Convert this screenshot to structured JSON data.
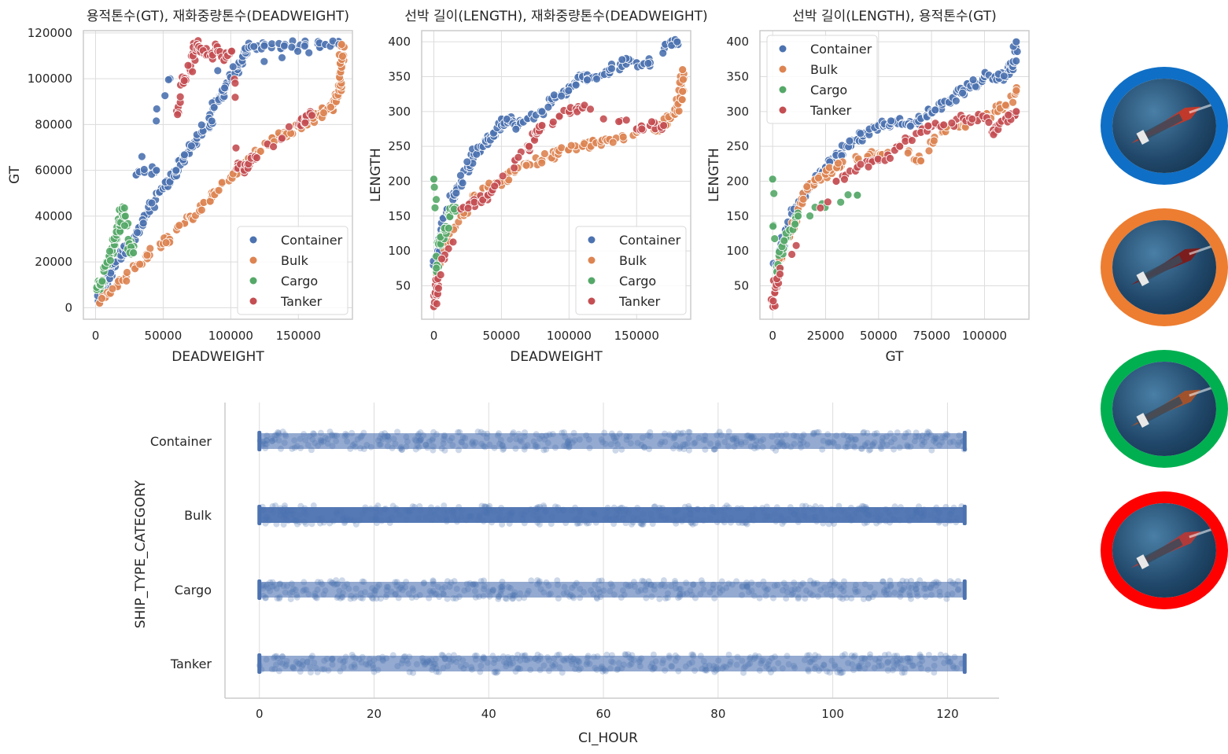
{
  "chart_data": [
    {
      "type": "scatter",
      "title": "용적톤수(GT), 재화중량톤수(DEADWEIGHT)",
      "xlabel": "DEADWEIGHT",
      "ylabel": "GT",
      "xlim": [
        -9000,
        190000
      ],
      "ylim": [
        -5000,
        121000
      ],
      "xticks": [
        0,
        50000,
        100000,
        150000
      ],
      "yticks": [
        0,
        20000,
        40000,
        60000,
        80000,
        100000,
        120000
      ],
      "grid": true,
      "legend": "lower-right",
      "series": [
        {
          "name": "Container",
          "color": "#4c72b0",
          "points": [
            [
              2000,
              3000
            ],
            [
              5000,
              8000
            ],
            [
              8000,
              12000
            ],
            [
              12000,
              16000
            ],
            [
              15000,
              20000
            ],
            [
              20000,
              25000
            ],
            [
              25000,
              28000
            ],
            [
              30000,
              32000
            ],
            [
              35000,
              36000
            ],
            [
              40000,
              42000
            ],
            [
              45000,
              50000
            ],
            [
              50000,
              52000
            ],
            [
              55000,
              55000
            ],
            [
              60000,
              60000
            ],
            [
              65000,
              65000
            ],
            [
              70000,
              70000
            ],
            [
              75000,
              74000
            ],
            [
              80000,
              78000
            ],
            [
              85000,
              80000
            ],
            [
              88000,
              88000
            ],
            [
              92000,
              92000
            ],
            [
              95000,
              96000
            ],
            [
              100000,
              100000
            ],
            [
              105000,
              104000
            ],
            [
              108000,
              108000
            ],
            [
              110000,
              112000
            ],
            [
              115000,
              114000
            ],
            [
              125000,
              115000
            ],
            [
              140000,
              115000
            ],
            [
              155000,
              115000
            ],
            [
              170000,
              115000
            ],
            [
              180000,
              115000
            ],
            [
              55000,
              100000
            ],
            [
              30000,
              58000
            ],
            [
              45000,
              60000
            ]
          ]
        },
        {
          "name": "Bulk",
          "color": "#dd8452",
          "points": [
            [
              3000,
              2000
            ],
            [
              10000,
              6000
            ],
            [
              20000,
              12000
            ],
            [
              30000,
              18000
            ],
            [
              40000,
              23000
            ],
            [
              50000,
              28000
            ],
            [
              60000,
              34000
            ],
            [
              70000,
              40000
            ],
            [
              80000,
              46000
            ],
            [
              90000,
              51000
            ],
            [
              100000,
              57000
            ],
            [
              110000,
              62000
            ],
            [
              120000,
              68000
            ],
            [
              130000,
              73000
            ],
            [
              140000,
              76000
            ],
            [
              150000,
              79000
            ],
            [
              160000,
              82000
            ],
            [
              165000,
              84000
            ],
            [
              170000,
              86000
            ],
            [
              175000,
              88000
            ],
            [
              178000,
              90000
            ],
            [
              180000,
              95000
            ],
            [
              181000,
              100000
            ],
            [
              182000,
              105000
            ],
            [
              182000,
              110000
            ],
            [
              182000,
              115000
            ]
          ]
        },
        {
          "name": "Cargo",
          "color": "#55a868",
          "points": [
            [
              1000,
              8000
            ],
            [
              3000,
              10000
            ],
            [
              5000,
              12000
            ],
            [
              8000,
              20000
            ],
            [
              12000,
              26000
            ],
            [
              15000,
              30000
            ],
            [
              18000,
              36000
            ],
            [
              20000,
              44000
            ],
            [
              22000,
              40000
            ],
            [
              25000,
              28000
            ],
            [
              28000,
              24000
            ]
          ]
        },
        {
          "name": "Tanker",
          "color": "#c44e52",
          "points": [
            [
              60000,
              86000
            ],
            [
              65000,
              98000
            ],
            [
              70000,
              104000
            ],
            [
              72000,
              110000
            ],
            [
              75000,
              115000
            ],
            [
              80000,
              112000
            ],
            [
              85000,
              110000
            ],
            [
              90000,
              114000
            ],
            [
              95000,
              108000
            ],
            [
              100000,
              112000
            ],
            [
              105000,
              62000
            ],
            [
              110000,
              60000
            ],
            [
              115000,
              64000
            ],
            [
              118000,
              66000
            ],
            [
              150000,
              80000
            ],
            [
              155000,
              82000
            ],
            [
              160000,
              84000
            ]
          ]
        }
      ]
    },
    {
      "type": "scatter",
      "title": "선박 길이(LENGTH), 재화중량톤수(DEADWEIGHT)",
      "xlabel": "DEADWEIGHT",
      "ylabel": "LENGTH",
      "xlim": [
        -9000,
        190000
      ],
      "ylim": [
        2,
        416
      ],
      "xticks": [
        0,
        50000,
        100000,
        150000
      ],
      "yticks": [
        50,
        100,
        150,
        200,
        250,
        300,
        350,
        400
      ],
      "grid": true,
      "legend": "lower-right",
      "series": [
        {
          "name": "Container",
          "color": "#4c72b0",
          "points": [
            [
              1000,
              80
            ],
            [
              3000,
              100
            ],
            [
              6000,
              130
            ],
            [
              10000,
              160
            ],
            [
              15000,
              180
            ],
            [
              20000,
              200
            ],
            [
              25000,
              220
            ],
            [
              30000,
              240
            ],
            [
              35000,
              250
            ],
            [
              40000,
              260
            ],
            [
              45000,
              270
            ],
            [
              50000,
              280
            ],
            [
              55000,
              290
            ],
            [
              60000,
              280
            ],
            [
              70000,
              290
            ],
            [
              80000,
              300
            ],
            [
              90000,
              320
            ],
            [
              100000,
              330
            ],
            [
              105000,
              340
            ],
            [
              110000,
              350
            ],
            [
              120000,
              350
            ],
            [
              130000,
              360
            ],
            [
              140000,
              370
            ],
            [
              150000,
              370
            ],
            [
              160000,
              370
            ],
            [
              175000,
              400
            ],
            [
              180000,
              400
            ]
          ]
        },
        {
          "name": "Bulk",
          "color": "#dd8452",
          "points": [
            [
              2000,
              60
            ],
            [
              10000,
              110
            ],
            [
              20000,
              150
            ],
            [
              30000,
              180
            ],
            [
              40000,
              190
            ],
            [
              50000,
              200
            ],
            [
              60000,
              215
            ],
            [
              70000,
              225
            ],
            [
              80000,
              230
            ],
            [
              90000,
              240
            ],
            [
              100000,
              245
            ],
            [
              110000,
              250
            ],
            [
              120000,
              255
            ],
            [
              130000,
              260
            ],
            [
              150000,
              270
            ],
            [
              170000,
              280
            ],
            [
              175000,
              290
            ],
            [
              180000,
              300
            ],
            [
              182000,
              320
            ],
            [
              183000,
              340
            ],
            [
              184000,
              360
            ]
          ]
        },
        {
          "name": "Cargo",
          "color": "#55a868",
          "points": [
            [
              0,
              203
            ],
            [
              2000,
              70
            ],
            [
              5000,
              110
            ],
            [
              8000,
              130
            ],
            [
              12000,
              150
            ],
            [
              15000,
              160
            ]
          ]
        },
        {
          "name": "Tanker",
          "color": "#c44e52",
          "points": [
            [
              0,
              20
            ],
            [
              1000,
              40
            ],
            [
              3000,
              60
            ],
            [
              20000,
              160
            ],
            [
              30000,
              170
            ],
            [
              40000,
              180
            ],
            [
              60000,
              230
            ],
            [
              70000,
              250
            ],
            [
              75000,
              270
            ],
            [
              80000,
              280
            ],
            [
              100000,
              300
            ],
            [
              110000,
              305
            ],
            [
              150000,
              275
            ],
            [
              160000,
              280
            ],
            [
              170000,
              280
            ]
          ]
        }
      ]
    },
    {
      "type": "scatter",
      "title": "선박 길이(LENGTH), 용적톤수(GT)",
      "xlabel": "GT",
      "ylabel": "LENGTH",
      "xlim": [
        -6000,
        121000
      ],
      "ylim": [
        2,
        416
      ],
      "xticks": [
        0,
        25000,
        50000,
        75000,
        100000
      ],
      "yticks": [
        50,
        100,
        150,
        200,
        250,
        300,
        350,
        400
      ],
      "grid": true,
      "legend": "upper-left",
      "series": [
        {
          "name": "Container",
          "color": "#4c72b0",
          "points": [
            [
              1000,
              80
            ],
            [
              3000,
              100
            ],
            [
              6000,
              130
            ],
            [
              10000,
              160
            ],
            [
              15000,
              180
            ],
            [
              20000,
              200
            ],
            [
              25000,
              220
            ],
            [
              30000,
              240
            ],
            [
              35000,
              250
            ],
            [
              40000,
              260
            ],
            [
              45000,
              270
            ],
            [
              50000,
              280
            ],
            [
              55000,
              280
            ],
            [
              60000,
              290
            ],
            [
              65000,
              280
            ],
            [
              70000,
              290
            ],
            [
              75000,
              300
            ],
            [
              80000,
              310
            ],
            [
              85000,
              320
            ],
            [
              90000,
              330
            ],
            [
              95000,
              340
            ],
            [
              100000,
              350
            ],
            [
              105000,
              350
            ],
            [
              110000,
              350
            ],
            [
              112000,
              360
            ],
            [
              114000,
              370
            ],
            [
              115000,
              400
            ]
          ]
        },
        {
          "name": "Bulk",
          "color": "#dd8452",
          "points": [
            [
              2000,
              60
            ],
            [
              8000,
              120
            ],
            [
              12000,
              160
            ],
            [
              16000,
              190
            ],
            [
              20000,
              200
            ],
            [
              25000,
              210
            ],
            [
              30000,
              220
            ],
            [
              40000,
              230
            ],
            [
              50000,
              240
            ],
            [
              60000,
              250
            ],
            [
              70000,
              230
            ],
            [
              80000,
              270
            ],
            [
              90000,
              280
            ],
            [
              100000,
              290
            ],
            [
              105000,
              300
            ],
            [
              110000,
              310
            ],
            [
              115000,
              330
            ]
          ]
        },
        {
          "name": "Cargo",
          "color": "#55a868",
          "points": [
            [
              0,
              203
            ],
            [
              2000,
              70
            ],
            [
              5000,
              110
            ],
            [
              8000,
              130
            ],
            [
              12000,
              150
            ],
            [
              40000,
              180
            ]
          ]
        },
        {
          "name": "Tanker",
          "color": "#c44e52",
          "points": [
            [
              0,
              20
            ],
            [
              1000,
              40
            ],
            [
              2000,
              60
            ],
            [
              30000,
              200
            ],
            [
              40000,
              220
            ],
            [
              50000,
              230
            ],
            [
              60000,
              250
            ],
            [
              70000,
              270
            ],
            [
              80000,
              280
            ],
            [
              90000,
              290
            ],
            [
              100000,
              290
            ],
            [
              105000,
              270
            ],
            [
              110000,
              290
            ],
            [
              115000,
              300
            ]
          ]
        }
      ]
    },
    {
      "type": "strip",
      "title": "",
      "xlabel": "CI_HOUR",
      "ylabel": "SHIP_TYPE_CATEGORY",
      "xlim": [
        -6,
        129
      ],
      "xticks": [
        0,
        20,
        40,
        60,
        80,
        100,
        120
      ],
      "categories": [
        "Container",
        "Bulk",
        "Cargo",
        "Tanker"
      ],
      "x_range_per_category": [
        [
          0,
          123
        ],
        [
          0,
          123
        ],
        [
          0,
          123
        ],
        [
          0,
          123
        ]
      ],
      "color": "#4c72b0",
      "grid": true
    }
  ],
  "side_images": [
    {
      "label": "container-ship-photo",
      "ring_color": "#0f6fc6",
      "hull_color": "#c0392b"
    },
    {
      "label": "bulk-carrier-photo",
      "ring_color": "#ed7d31",
      "hull_color": "#7b1d1d"
    },
    {
      "label": "cargo-ship-photo",
      "ring_color": "#00b050",
      "hull_color": "#a0522d"
    },
    {
      "label": "tanker-ship-photo",
      "ring_color": "#ff0000",
      "hull_color": "#b03a3a"
    }
  ]
}
